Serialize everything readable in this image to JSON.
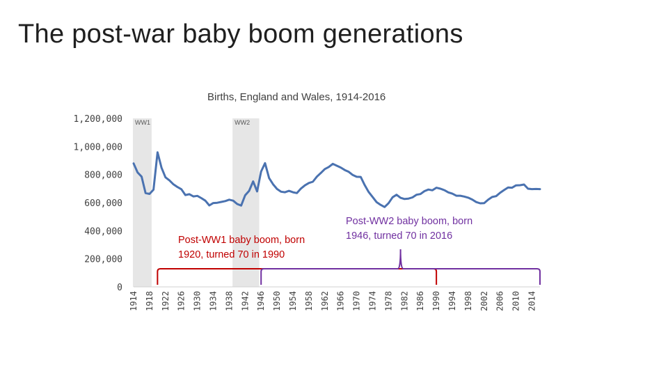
{
  "slide": {
    "title": "The post-war baby boom generations"
  },
  "chart_data": {
    "type": "line",
    "title": "Births, England and Wales, 1914-2016",
    "xlabel": "",
    "ylabel": "",
    "ylim": [
      0,
      1200000
    ],
    "y_ticks": [
      "0",
      "200,000",
      "400,000",
      "600,000",
      "800,000",
      "1,000,000",
      "1,200,000"
    ],
    "x_ticks": [
      "1914",
      "1918",
      "1922",
      "1926",
      "1930",
      "1934",
      "1938",
      "1942",
      "1946",
      "1950",
      "1954",
      "1958",
      "1962",
      "1966",
      "1970",
      "1974",
      "1978",
      "1982",
      "1986",
      "1990",
      "1994",
      "1998",
      "2002",
      "2006",
      "2010",
      "2014"
    ],
    "grid": false,
    "line_color": "#4a72b0",
    "shaded_periods": [
      {
        "label": "WW1",
        "start": 1914,
        "end": 1918
      },
      {
        "label": "WW2",
        "start": 1939,
        "end": 1945
      }
    ],
    "x": [
      1914,
      1915,
      1916,
      1917,
      1918,
      1919,
      1920,
      1921,
      1922,
      1923,
      1924,
      1925,
      1926,
      1927,
      1928,
      1929,
      1930,
      1931,
      1932,
      1933,
      1934,
      1935,
      1936,
      1937,
      1938,
      1939,
      1940,
      1941,
      1942,
      1943,
      1944,
      1945,
      1946,
      1947,
      1948,
      1949,
      1950,
      1951,
      1952,
      1953,
      1954,
      1955,
      1956,
      1957,
      1958,
      1959,
      1960,
      1961,
      1962,
      1963,
      1964,
      1965,
      1966,
      1967,
      1968,
      1969,
      1970,
      1971,
      1972,
      1973,
      1974,
      1975,
      1976,
      1977,
      1978,
      1979,
      1980,
      1981,
      1982,
      1983,
      1984,
      1985,
      1986,
      1987,
      1988,
      1989,
      1990,
      1991,
      1992,
      1993,
      1994,
      1995,
      1996,
      1997,
      1998,
      1999,
      2000,
      2001,
      2002,
      2003,
      2004,
      2005,
      2006,
      2007,
      2008,
      2009,
      2010,
      2011,
      2012,
      2013,
      2014,
      2015,
      2016
    ],
    "values": [
      879000,
      815000,
      785000,
      668000,
      662000,
      692000,
      958000,
      849000,
      780000,
      758000,
      730000,
      711000,
      695000,
      654000,
      660000,
      644000,
      648000,
      632000,
      614000,
      580000,
      597000,
      599000,
      605000,
      611000,
      621000,
      614000,
      590000,
      579000,
      652000,
      684000,
      751000,
      680000,
      821000,
      881000,
      775000,
      731000,
      697000,
      678000,
      674000,
      684000,
      674000,
      668000,
      700000,
      723000,
      740000,
      749000,
      785000,
      811000,
      839000,
      854000,
      876000,
      863000,
      850000,
      832000,
      819000,
      797000,
      784000,
      783000,
      725000,
      676000,
      640000,
      603000,
      584000,
      569000,
      596000,
      638000,
      656000,
      634000,
      626000,
      629000,
      637000,
      656000,
      661000,
      682000,
      693000,
      688000,
      706000,
      699000,
      689000,
      673000,
      664000,
      649000,
      649000,
      643000,
      635000,
      622000,
      604000,
      595000,
      596000,
      621000,
      640000,
      646000,
      670000,
      690000,
      708000,
      706000,
      723000,
      724000,
      729000,
      699000,
      696000,
      697000,
      696000
    ]
  },
  "annotations": {
    "ww1_label": "WW1",
    "ww2_label": "WW2",
    "post_ww1": {
      "text": "Post-WW1 baby boom, born 1920, turned 70 in 1990",
      "line1": "Post-WW1 baby boom, born",
      "line2": "1920, turned 70 in 1990",
      "color": "#c00000",
      "start": 1920,
      "end": 1990
    },
    "post_ww2": {
      "text": "Post-WW2 baby boom, born 1946, turned 70 in 2016",
      "line1": "Post-WW2 baby boom, born",
      "line2": "1946, turned 70 in 2016",
      "color": "#7030a0",
      "start": 1946,
      "end": 2016
    }
  }
}
